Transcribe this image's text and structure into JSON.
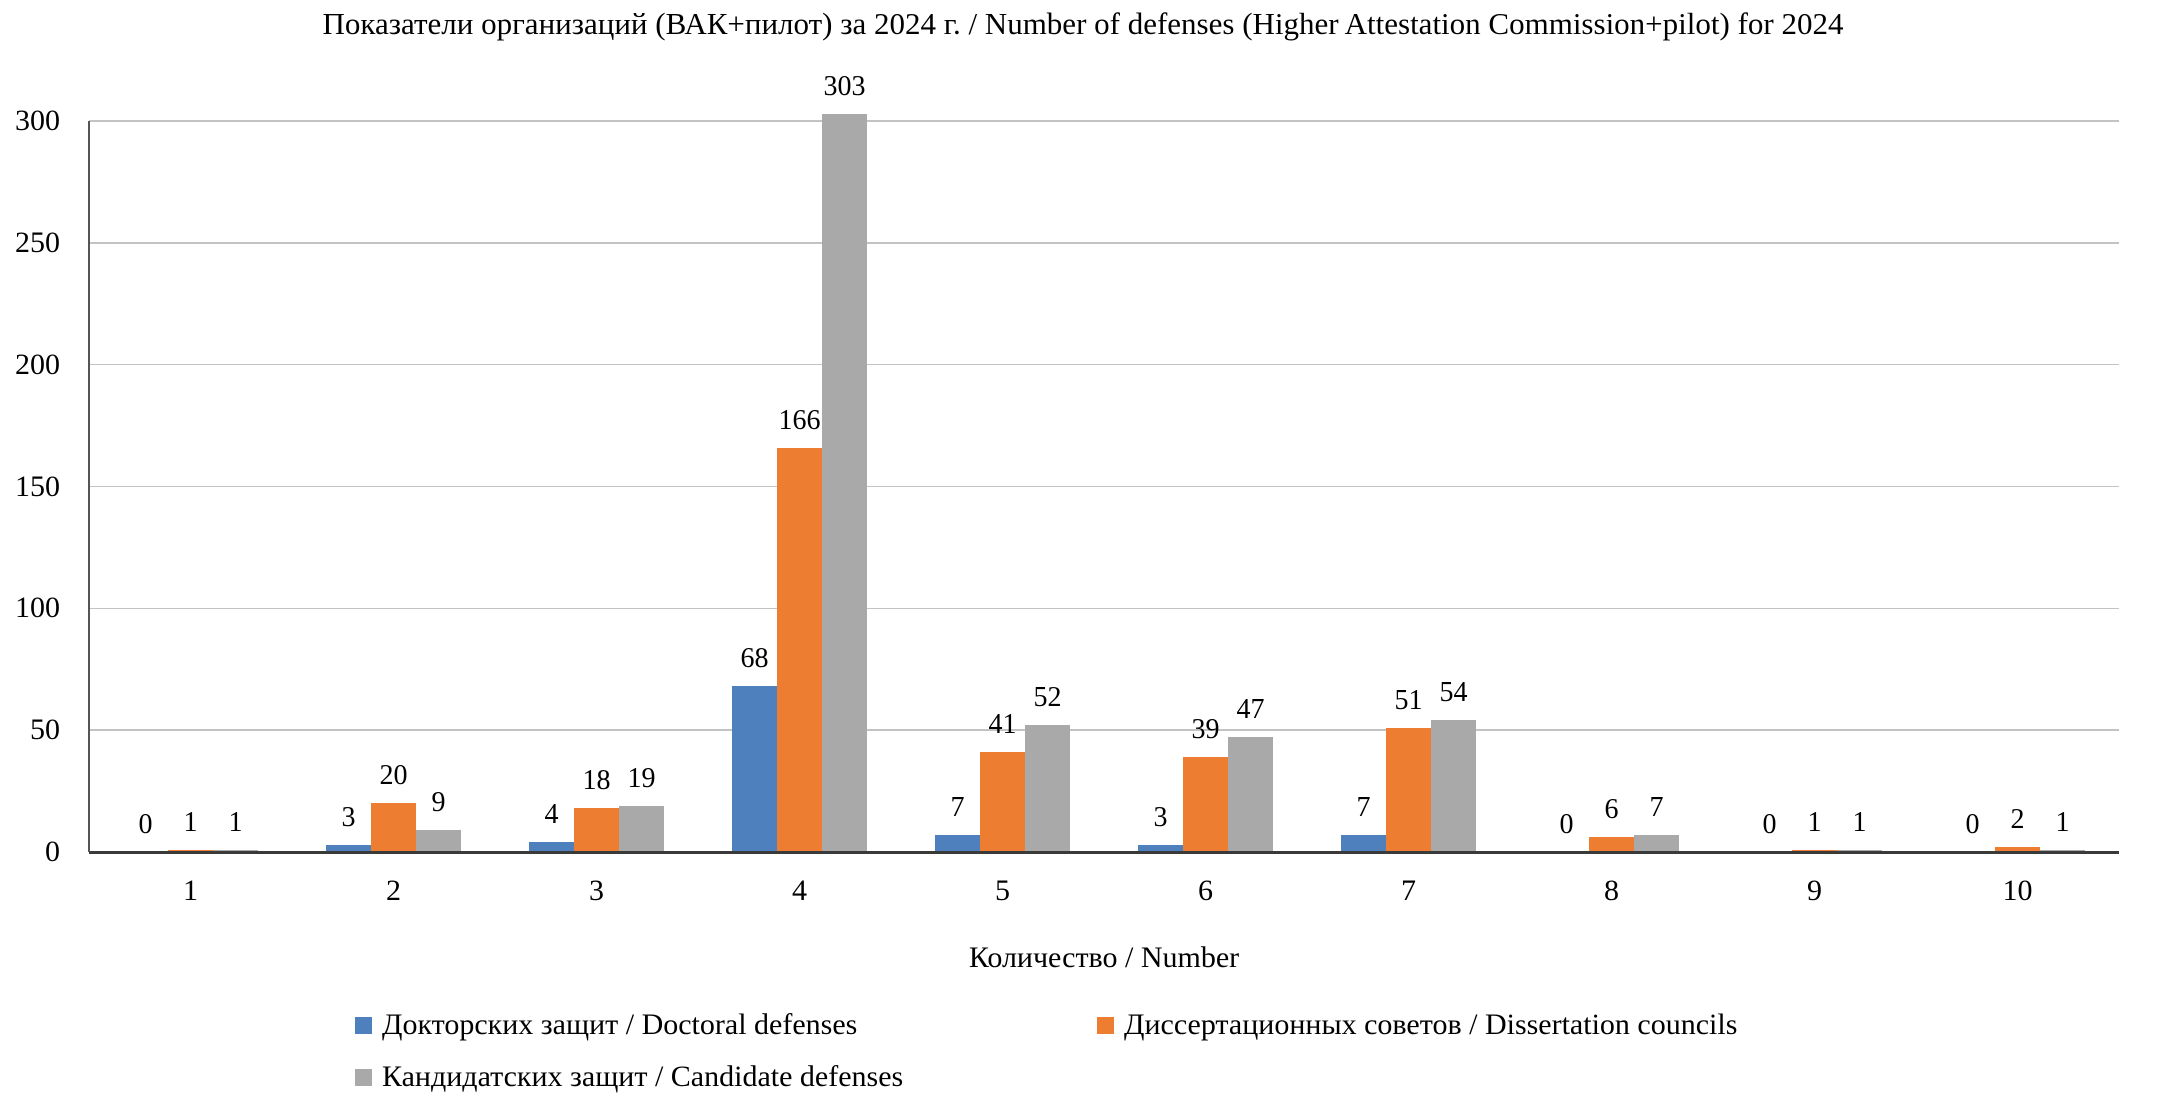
{
  "chart_data": {
    "type": "bar",
    "title": "Показатели организаций (ВАК+пилот) за 2024 г. / Number of defenses (Higher Attestation Commission+pilot) for 2024",
    "categories": [
      "1",
      "2",
      "3",
      "4",
      "5",
      "6",
      "7",
      "8",
      "9",
      "10"
    ],
    "series": [
      {
        "name": "Докторских защит / Doctoral defenses",
        "color": "#4e80bd",
        "values": [
          0,
          3,
          4,
          68,
          7,
          3,
          7,
          0,
          0,
          0
        ]
      },
      {
        "name": "Диссертационных советов / Dissertation councils",
        "color": "#ec7d31",
        "values": [
          1,
          20,
          18,
          166,
          41,
          39,
          51,
          6,
          1,
          2
        ]
      },
      {
        "name": "Кандидатских защит / Candidate defenses",
        "color": "#a9a9a9",
        "values": [
          1,
          9,
          19,
          303,
          52,
          47,
          54,
          7,
          1,
          1
        ]
      }
    ],
    "xlabel": "Количество / Number",
    "ylabel": "",
    "ylim": [
      0,
      300
    ],
    "yticks": [
      0,
      50,
      100,
      150,
      200,
      250,
      300
    ],
    "grid": true,
    "legend_position": "bottom",
    "data_labels": true,
    "colors": {
      "gridline": "#c3c3c3",
      "axis_line": "#3a3a3a",
      "background": "#ffffff",
      "text": "#000000"
    }
  }
}
